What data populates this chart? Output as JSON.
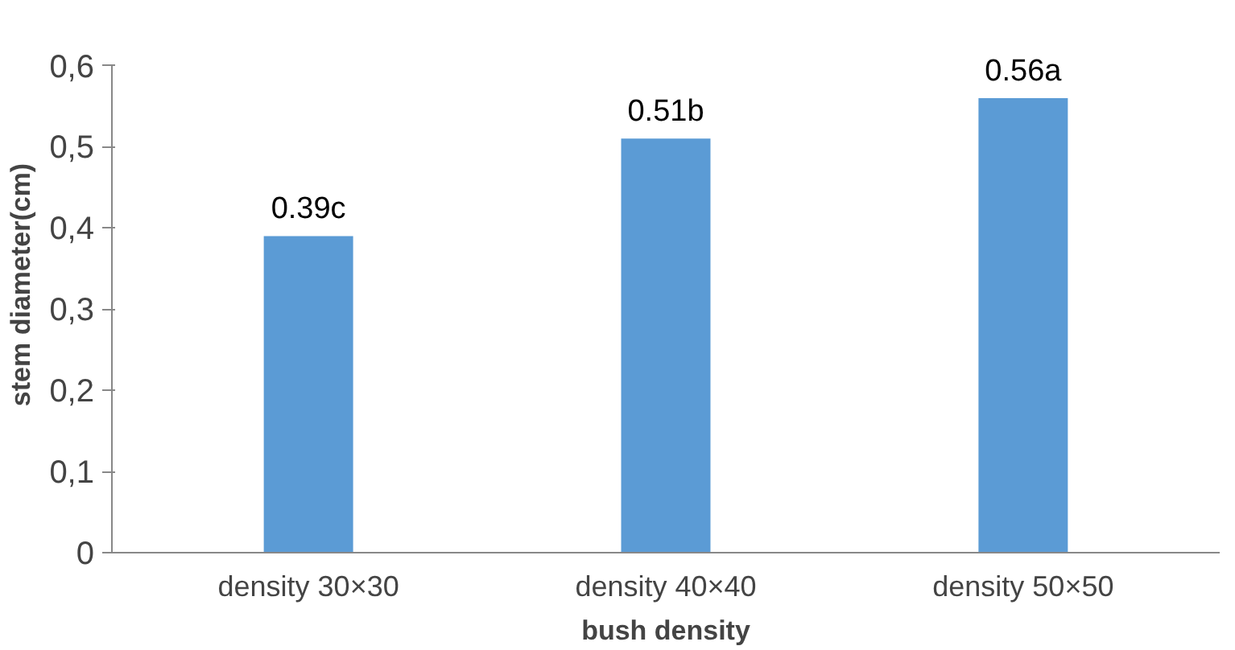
{
  "chart_data": {
    "type": "bar",
    "xlabel": "bush density",
    "ylabel": "stem diameter(cm)",
    "categories": [
      "density 30×30",
      "density 40×40",
      "density 50×50"
    ],
    "values": [
      0.39,
      0.51,
      0.56
    ],
    "value_labels": [
      "0.39c",
      "0.51b",
      "0.56a"
    ],
    "color": "#5b9bd5",
    "ylim": [
      0,
      0.6
    ],
    "yticks": [
      0,
      {
        "value": 0.1,
        "label": "0,1"
      },
      {
        "value": 0.2,
        "label": "0,2"
      },
      {
        "value": 0.3,
        "label": "0,3"
      },
      {
        "value": 0.4,
        "label": "0,4"
      },
      {
        "value": 0.5,
        "label": "0,5"
      },
      {
        "value": 0.6,
        "label": "0,6"
      }
    ],
    "grid": false
  }
}
